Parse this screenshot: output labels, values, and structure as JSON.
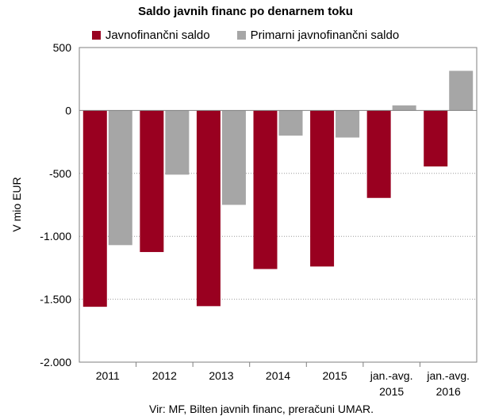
{
  "chart_data": {
    "type": "bar",
    "title": "Saldo javnih financ po denarnem toku",
    "ylabel": "V mio EUR",
    "xlabel": "",
    "categories": [
      [
        "2011"
      ],
      [
        "2012"
      ],
      [
        "2013"
      ],
      [
        "2014"
      ],
      [
        "2015"
      ],
      [
        "jan.-avg.",
        "2015"
      ],
      [
        "jan.-avg.",
        "2016"
      ]
    ],
    "series": [
      {
        "name": "Javnofinančni saldo",
        "color": "#990020",
        "values": [
          -1560,
          -1125,
          -1555,
          -1260,
          -1240,
          -695,
          -445
        ]
      },
      {
        "name": "Primarni javnofinančni saldo",
        "color": "#a6a6a6",
        "values": [
          -1070,
          -510,
          -750,
          -200,
          -215,
          40,
          315
        ]
      }
    ],
    "ylim": [
      -2000,
      500
    ],
    "yticks": [
      500,
      0,
      -500,
      -1000,
      -1500,
      -2000
    ],
    "ytick_labels": [
      "500",
      "0",
      "-500",
      "-1.000",
      "-1.500",
      "-2.000"
    ],
    "grid": "horizontal-dotted",
    "legend_position": "top",
    "source": "Vir: MF, Bilten javnih financ, preračuni UMAR."
  }
}
